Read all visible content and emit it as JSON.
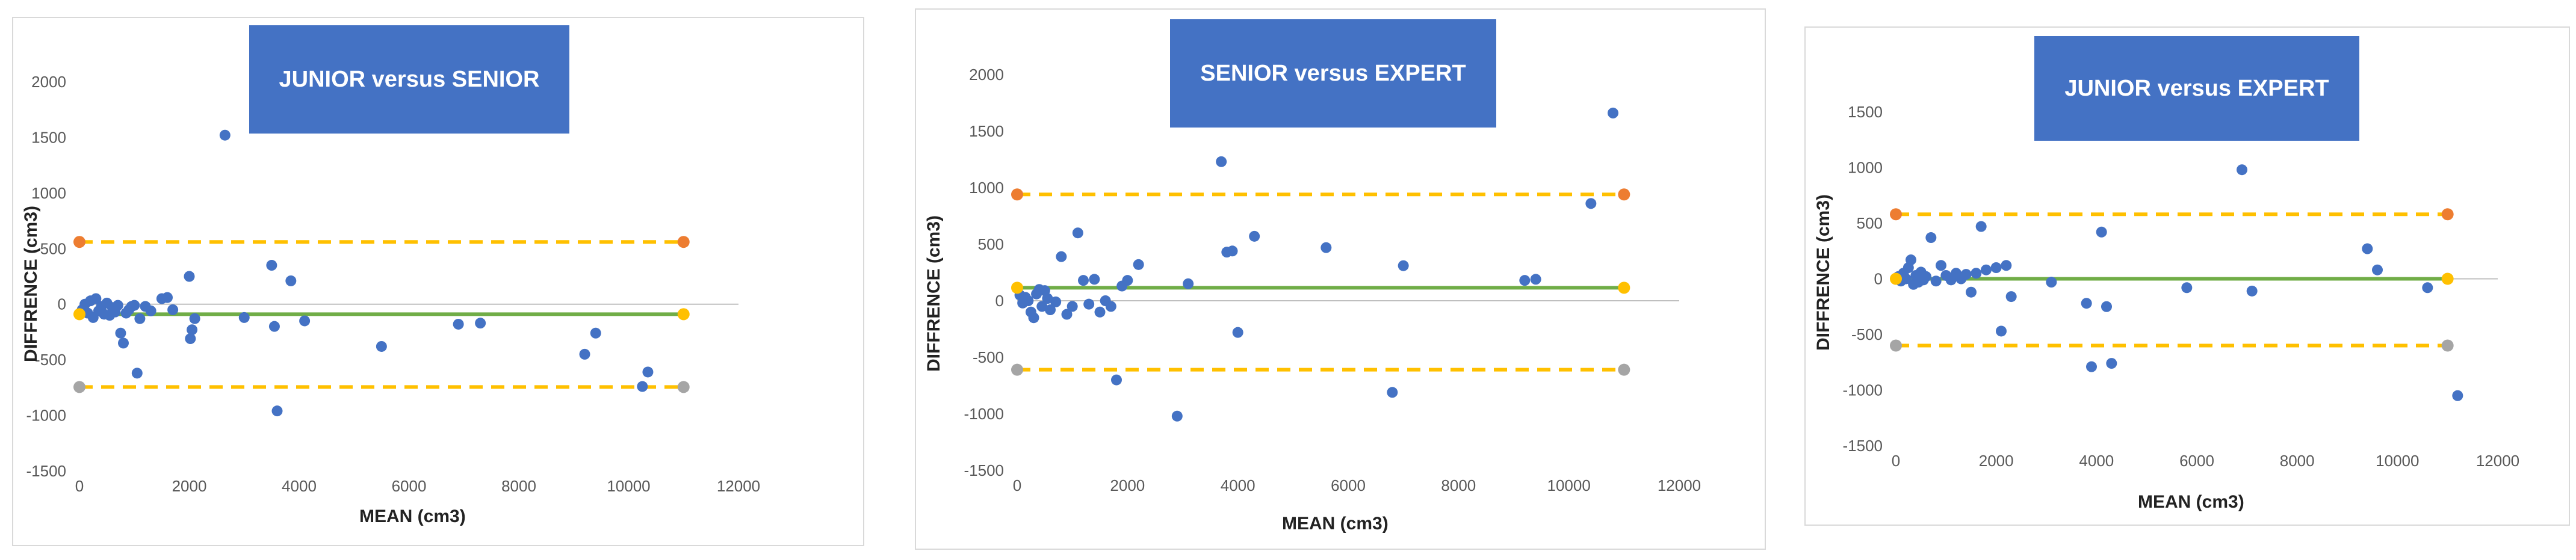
{
  "colors": {
    "points": "#4472c4",
    "mean_line": "#70ad47",
    "limits": "#ffc000",
    "upper_marker": "#ed7d31",
    "lower_marker": "#a5a5a5",
    "title_bg": "#4472c4"
  },
  "chart_data": [
    {
      "type": "scatter",
      "title": "JUNIOR versus SENIOR",
      "xlabel": "MEAN (cm3)",
      "ylabel": "DIFFRENCE (cm3)",
      "xlim": [
        0,
        12000
      ],
      "ylim": [
        -1500,
        2000
      ],
      "xticks": [
        "0",
        "2000",
        "4000",
        "6000",
        "8000",
        "10000",
        "12000"
      ],
      "yticks": [
        "2000",
        "1500",
        "1000",
        "500",
        "0",
        "-500",
        "-1000",
        "-1500"
      ],
      "grid": false,
      "mean_diff": -90,
      "upper_loa": 560,
      "lower_loa": -745,
      "points": [
        [
          50,
          -50
        ],
        [
          100,
          0
        ],
        [
          150,
          -80
        ],
        [
          200,
          30
        ],
        [
          250,
          -120
        ],
        [
          300,
          50
        ],
        [
          350,
          -60
        ],
        [
          400,
          -20
        ],
        [
          450,
          -90
        ],
        [
          500,
          10
        ],
        [
          550,
          -100
        ],
        [
          600,
          -30
        ],
        [
          650,
          -70
        ],
        [
          700,
          -10
        ],
        [
          750,
          -260
        ],
        [
          800,
          -350
        ],
        [
          850,
          -80
        ],
        [
          900,
          -50
        ],
        [
          950,
          -20
        ],
        [
          1000,
          -10
        ],
        [
          1050,
          -620
        ],
        [
          1100,
          -130
        ],
        [
          1200,
          -20
        ],
        [
          1300,
          -60
        ],
        [
          1500,
          50
        ],
        [
          1600,
          60
        ],
        [
          1700,
          -50
        ],
        [
          2000,
          250
        ],
        [
          2020,
          -310
        ],
        [
          2050,
          -230
        ],
        [
          2100,
          -130
        ],
        [
          2650,
          1520
        ],
        [
          3000,
          -120
        ],
        [
          3500,
          350
        ],
        [
          3550,
          -200
        ],
        [
          3600,
          -960
        ],
        [
          3850,
          210
        ],
        [
          4100,
          -150
        ],
        [
          5500,
          -380
        ],
        [
          6900,
          -180
        ],
        [
          7300,
          -170
        ],
        [
          9200,
          -450
        ],
        [
          9400,
          -260
        ],
        [
          10250,
          -740
        ],
        [
          10350,
          -610
        ]
      ]
    },
    {
      "type": "scatter",
      "title": "SENIOR versus EXPERT",
      "xlabel": "MEAN (cm3)",
      "ylabel": "DIFFRENCE (cm3)",
      "xlim": [
        0,
        12000
      ],
      "ylim": [
        -1500,
        2000
      ],
      "xticks": [
        "0",
        "2000",
        "4000",
        "6000",
        "8000",
        "10000",
        "12000"
      ],
      "yticks": [
        "2000",
        "1500",
        "1000",
        "500",
        "0",
        "-500",
        "-1000",
        "-1500"
      ],
      "grid": false,
      "mean_diff": 115,
      "upper_loa": 940,
      "lower_loa": -610,
      "points": [
        [
          50,
          50
        ],
        [
          100,
          -20
        ],
        [
          150,
          30
        ],
        [
          200,
          0
        ],
        [
          250,
          -100
        ],
        [
          300,
          -150
        ],
        [
          350,
          60
        ],
        [
          400,
          100
        ],
        [
          450,
          -50
        ],
        [
          500,
          90
        ],
        [
          550,
          20
        ],
        [
          600,
          -80
        ],
        [
          700,
          -10
        ],
        [
          800,
          390
        ],
        [
          900,
          -120
        ],
        [
          1000,
          -50
        ],
        [
          1100,
          600
        ],
        [
          1200,
          180
        ],
        [
          1300,
          -30
        ],
        [
          1400,
          190
        ],
        [
          1500,
          -100
        ],
        [
          1600,
          0
        ],
        [
          1700,
          -50
        ],
        [
          1800,
          -700
        ],
        [
          1900,
          130
        ],
        [
          2000,
          180
        ],
        [
          2200,
          320
        ],
        [
          2900,
          -1020
        ],
        [
          3100,
          150
        ],
        [
          3700,
          1230
        ],
        [
          3800,
          430
        ],
        [
          3900,
          440
        ],
        [
          4000,
          -280
        ],
        [
          4300,
          570
        ],
        [
          5600,
          470
        ],
        [
          6800,
          -810
        ],
        [
          7000,
          310
        ],
        [
          9200,
          180
        ],
        [
          9400,
          190
        ],
        [
          10400,
          860
        ],
        [
          10800,
          1660
        ]
      ]
    },
    {
      "type": "scatter",
      "title": "JUNIOR versus EXPERT",
      "xlabel": "MEAN (cm3)",
      "ylabel": "DIFFRENCE (cm3)",
      "xlim": [
        0,
        12000
      ],
      "ylim": [
        -1500,
        1500
      ],
      "xticks": [
        "0",
        "2000",
        "4000",
        "6000",
        "8000",
        "10000",
        "12000"
      ],
      "yticks": [
        "1500",
        "1000",
        "500",
        "0",
        "-500",
        "-1000",
        "-1500"
      ],
      "grid": false,
      "mean_diff": 0,
      "upper_loa": 580,
      "lower_loa": -600,
      "points": [
        [
          50,
          20
        ],
        [
          100,
          -20
        ],
        [
          150,
          50
        ],
        [
          200,
          0
        ],
        [
          250,
          100
        ],
        [
          300,
          170
        ],
        [
          350,
          -50
        ],
        [
          400,
          30
        ],
        [
          450,
          -30
        ],
        [
          500,
          60
        ],
        [
          550,
          -10
        ],
        [
          600,
          20
        ],
        [
          700,
          370
        ],
        [
          800,
          -20
        ],
        [
          900,
          120
        ],
        [
          1000,
          30
        ],
        [
          1100,
          -10
        ],
        [
          1200,
          50
        ],
        [
          1300,
          0
        ],
        [
          1400,
          40
        ],
        [
          1500,
          -120
        ],
        [
          1600,
          50
        ],
        [
          1700,
          470
        ],
        [
          1800,
          80
        ],
        [
          2000,
          100
        ],
        [
          2100,
          -470
        ],
        [
          2200,
          120
        ],
        [
          2300,
          -160
        ],
        [
          3100,
          -30
        ],
        [
          3800,
          -220
        ],
        [
          3900,
          -790
        ],
        [
          4100,
          420
        ],
        [
          4200,
          -250
        ],
        [
          4300,
          -760
        ],
        [
          5800,
          -80
        ],
        [
          6900,
          980
        ],
        [
          7100,
          -110
        ],
        [
          9400,
          270
        ],
        [
          9600,
          80
        ],
        [
          10600,
          -80
        ],
        [
          11200,
          -1050
        ]
      ]
    }
  ]
}
